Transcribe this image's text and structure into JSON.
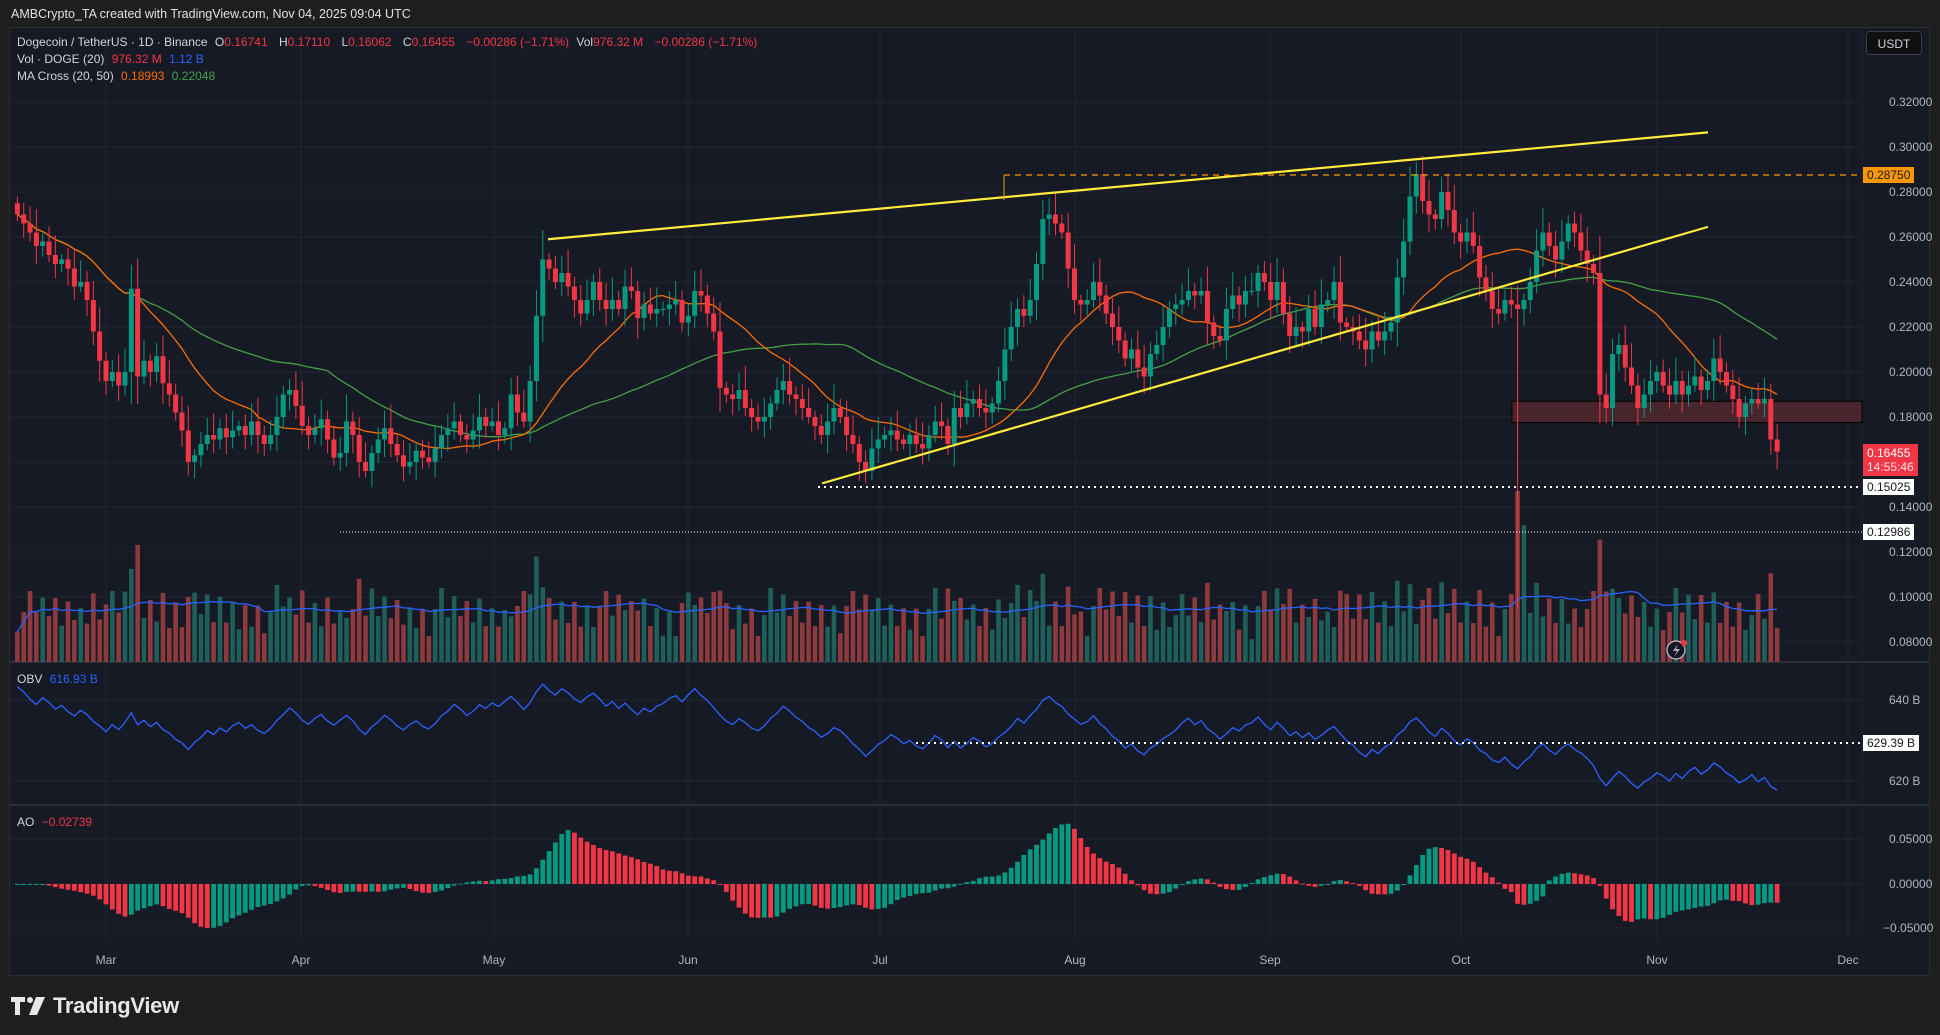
{
  "caption": "AMBCrypto_TA created with TradingView.com, Nov 04, 2025 09:04 UTC",
  "header": {
    "symbol": "Dogecoin / TetherUS · 1D · Binance",
    "open_label": "O",
    "open": "0.16741",
    "high_label": "H",
    "high": "0.17110",
    "low_label": "L",
    "low": "0.16062",
    "close_label": "C",
    "close": "0.16455",
    "change": "−0.00286 (−1.71%)",
    "vol_label": "Vol",
    "vol": "976.32 M",
    "vol_change": "−0.00286 (−1.71%)"
  },
  "indicators": {
    "volume": {
      "label": "Vol · DOGE (20)",
      "value": "976.32 M",
      "ma": "1.12 B"
    },
    "ma_cross": {
      "label": "MA Cross (20, 50)",
      "fast": "0.18993",
      "slow": "0.22048"
    },
    "obv": {
      "label": "OBV",
      "value": "616.93 B"
    },
    "ao": {
      "label": "AO",
      "value": "−0.02739"
    }
  },
  "currency_button": "USDT",
  "price_axis": {
    "ticks": [
      "0.32000",
      "0.30000",
      "0.28000",
      "0.26000",
      "0.24000",
      "0.22000",
      "0.20000",
      "0.18000",
      "0.14000",
      "0.12000",
      "0.10000",
      "0.08000"
    ],
    "resistance_tag": "0.28750",
    "current_price_tag": "0.16455",
    "countdown_tag": "14:55:46",
    "support1_tag": "0.15025",
    "support2_tag": "0.12986"
  },
  "obv_axis": {
    "ticks": [
      "640 B",
      "620 B"
    ],
    "level_tag": "629.39 B"
  },
  "ao_axis": {
    "ticks": [
      "0.05000",
      "0.00000",
      "−0.05000"
    ]
  },
  "time_axis": [
    "Mar",
    "Apr",
    "May",
    "Jun",
    "Jul",
    "Aug",
    "Sep",
    "Oct",
    "Nov",
    "Dec"
  ],
  "brand": "TradingView",
  "colors": {
    "up": "#089981",
    "down": "#f23645",
    "vol_up": "#1f5f5a",
    "vol_down": "#8c3a3e",
    "ma20": "#ff6d00",
    "ma50": "#43a047",
    "obv": "#2962ff",
    "trend": "#ffeb3b",
    "resistance": "#ff9800",
    "zone": "#5a2a30"
  },
  "chart_data": {
    "type": "candlestick",
    "title": "Dogecoin / TetherUS · 1D · Binance",
    "xlabel": "",
    "ylabel": "USDT",
    "ylim": [
      0.072,
      0.335
    ],
    "x_ticks": [
      "Mar",
      "Apr",
      "May",
      "Jun",
      "Jul",
      "Aug",
      "Sep",
      "Oct",
      "Nov",
      "Dec"
    ],
    "start_date": "2025-02-15",
    "closes": [
      0.27,
      0.266,
      0.262,
      0.256,
      0.258,
      0.252,
      0.248,
      0.25,
      0.246,
      0.238,
      0.24,
      0.232,
      0.218,
      0.205,
      0.196,
      0.2,
      0.194,
      0.2,
      0.237,
      0.198,
      0.205,
      0.2,
      0.207,
      0.195,
      0.19,
      0.182,
      0.174,
      0.16,
      0.163,
      0.168,
      0.172,
      0.17,
      0.175,
      0.171,
      0.174,
      0.176,
      0.172,
      0.178,
      0.172,
      0.168,
      0.172,
      0.18,
      0.19,
      0.192,
      0.185,
      0.176,
      0.172,
      0.175,
      0.179,
      0.17,
      0.162,
      0.164,
      0.178,
      0.172,
      0.16,
      0.156,
      0.164,
      0.17,
      0.175,
      0.168,
      0.163,
      0.158,
      0.16,
      0.165,
      0.162,
      0.16,
      0.166,
      0.172,
      0.175,
      0.178,
      0.172,
      0.17,
      0.174,
      0.18,
      0.176,
      0.178,
      0.172,
      0.175,
      0.19,
      0.182,
      0.178,
      0.196,
      0.225,
      0.25,
      0.246,
      0.24,
      0.244,
      0.238,
      0.232,
      0.226,
      0.232,
      0.24,
      0.232,
      0.228,
      0.232,
      0.228,
      0.238,
      0.236,
      0.224,
      0.23,
      0.226,
      0.228,
      0.228,
      0.23,
      0.232,
      0.222,
      0.225,
      0.236,
      0.234,
      0.226,
      0.218,
      0.193,
      0.19,
      0.188,
      0.192,
      0.184,
      0.18,
      0.178,
      0.18,
      0.186,
      0.192,
      0.196,
      0.19,
      0.188,
      0.184,
      0.18,
      0.176,
      0.172,
      0.178,
      0.184,
      0.18,
      0.172,
      0.168,
      0.16,
      0.156,
      0.166,
      0.17,
      0.172,
      0.174,
      0.17,
      0.168,
      0.172,
      0.168,
      0.166,
      0.172,
      0.178,
      0.176,
      0.168,
      0.184,
      0.18,
      0.186,
      0.188,
      0.184,
      0.182,
      0.186,
      0.196,
      0.21,
      0.22,
      0.228,
      0.225,
      0.232,
      0.248,
      0.268,
      0.27,
      0.266,
      0.262,
      0.246,
      0.232,
      0.23,
      0.232,
      0.24,
      0.234,
      0.226,
      0.22,
      0.214,
      0.206,
      0.21,
      0.202,
      0.198,
      0.208,
      0.212,
      0.22,
      0.228,
      0.23,
      0.232,
      0.236,
      0.234,
      0.236,
      0.222,
      0.216,
      0.214,
      0.228,
      0.234,
      0.23,
      0.236,
      0.236,
      0.244,
      0.24,
      0.232,
      0.24,
      0.226,
      0.216,
      0.22,
      0.218,
      0.228,
      0.22,
      0.23,
      0.232,
      0.24,
      0.222,
      0.22,
      0.218,
      0.214,
      0.21,
      0.218,
      0.214,
      0.218,
      0.222,
      0.242,
      0.258,
      0.278,
      0.288,
      0.276,
      0.27,
      0.268,
      0.28,
      0.272,
      0.262,
      0.258,
      0.262,
      0.256,
      0.242,
      0.236,
      0.228,
      0.226,
      0.232,
      0.23,
      0.228,
      0.232,
      0.24,
      0.254,
      0.262,
      0.256,
      0.25,
      0.258,
      0.266,
      0.262,
      0.254,
      0.248,
      0.244,
      0.19,
      0.184,
      0.208,
      0.212,
      0.202,
      0.194,
      0.184,
      0.19,
      0.196,
      0.2,
      0.194,
      0.19,
      0.196,
      0.19,
      0.194,
      0.198,
      0.192,
      0.196,
      0.206,
      0.2,
      0.194,
      0.188,
      0.18,
      0.186,
      0.188,
      0.186,
      0.188,
      0.17,
      0.1646
    ],
    "annotations": {
      "rising_wedge_upper": [
        [
          0.259,
          "2025-05-10"
        ],
        [
          0.306,
          "2025-11-06"
        ]
      ],
      "rising_wedge_lower": [
        [
          0.15,
          "2025-06-22"
        ],
        [
          0.264,
          "2025-11-06"
        ]
      ],
      "resistance_dashed": 0.2875,
      "support_dotted": [
        0.15025,
        0.12986
      ],
      "demand_zone": [
        0.177,
        0.187
      ]
    },
    "series": [
      {
        "name": "MA 20",
        "color": "#ff6d00",
        "last": 0.18993
      },
      {
        "name": "MA 50",
        "color": "#43a047",
        "last": 0.22048
      },
      {
        "name": "Volume",
        "last": "976.32 M",
        "ma": "1.12 B"
      },
      {
        "name": "OBV",
        "last": "616.93 B",
        "level": "629.39 B",
        "ylim": [
          "~612 B",
          "~648 B"
        ]
      },
      {
        "name": "AO",
        "last": -0.02739,
        "ylim": [
          -0.065,
          0.085
        ]
      }
    ]
  }
}
